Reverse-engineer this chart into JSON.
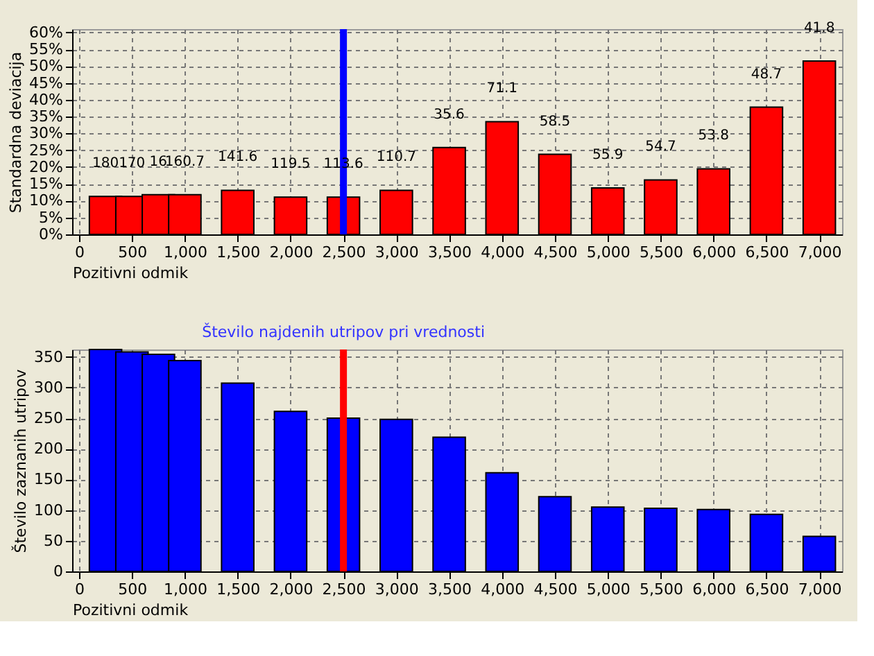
{
  "chart_data": [
    {
      "type": "bar",
      "ylabel": "Standardna deviacija",
      "xlabel": "Pozitivni odmik",
      "x": [
        250,
        500,
        750,
        1000,
        1500,
        2000,
        2500,
        3000,
        3500,
        4000,
        4500,
        5000,
        5500,
        6000,
        6500,
        7000
      ],
      "series": [
        {
          "color": "#ff0000",
          "values": [
            11.3,
            11.3,
            11.8,
            11.8,
            13.1,
            11.1,
            11.1,
            13.1,
            25.8,
            33.5,
            23.8,
            13.8,
            16.2,
            19.5,
            37.8,
            51.5
          ]
        }
      ],
      "annotations": [
        {
          "text": "180",
          "x": 250,
          "y": 11.3
        },
        {
          "text": "170",
          "x": 500,
          "y": 11.3
        },
        {
          "text": "16",
          "x": 750,
          "y": 11.8
        },
        {
          "text": "160.7",
          "x": 1000,
          "y": 11.8
        },
        {
          "text": "141.6",
          "x": 1500,
          "y": 13.1
        },
        {
          "text": "119.5",
          "x": 2000,
          "y": 11.1
        },
        {
          "text": "113.6",
          "x": 2500,
          "y": 11.1
        },
        {
          "text": "110.7",
          "x": 3000,
          "y": 13.1
        },
        {
          "text": "35.6",
          "x": 3500,
          "y": 25.8
        },
        {
          "text": "71.1",
          "x": 4000,
          "y": 33.5
        },
        {
          "text": "58.5",
          "x": 4500,
          "y": 23.8
        },
        {
          "text": "55.9",
          "x": 5000,
          "y": 13.8
        },
        {
          "text": "54.7",
          "x": 5500,
          "y": 16.2
        },
        {
          "text": "53.8",
          "x": 6000,
          "y": 19.5
        },
        {
          "text": "48.7",
          "x": 6500,
          "y": 37.8
        },
        {
          "text": "41.8",
          "x": 7000,
          "y": 51.5
        }
      ],
      "xlim": [
        0,
        7150
      ],
      "xticks": [
        {
          "value": 0,
          "label": "0"
        },
        {
          "value": 500,
          "label": "500"
        },
        {
          "value": 1000,
          "label": "1,000"
        },
        {
          "value": 1500,
          "label": "1,500"
        },
        {
          "value": 2000,
          "label": "2,000"
        },
        {
          "value": 2500,
          "label": "2,500"
        },
        {
          "value": 3000,
          "label": "3,000"
        },
        {
          "value": 3500,
          "label": "3,500"
        },
        {
          "value": 4000,
          "label": "4,000"
        },
        {
          "value": 4500,
          "label": "4,500"
        },
        {
          "value": 5000,
          "label": "5,000"
        },
        {
          "value": 5500,
          "label": "5,500"
        },
        {
          "value": 6000,
          "label": "6,000"
        },
        {
          "value": 6500,
          "label": "6,500"
        },
        {
          "value": 7000,
          "label": "7,000"
        }
      ],
      "ylim": [
        0,
        61
      ],
      "yticks": [
        {
          "value": 0,
          "label": "0%"
        },
        {
          "value": 5,
          "label": "5%"
        },
        {
          "value": 10,
          "label": "10%"
        },
        {
          "value": 15,
          "label": "15%"
        },
        {
          "value": 20,
          "label": "20%"
        },
        {
          "value": 25,
          "label": "25%"
        },
        {
          "value": 30,
          "label": "30%"
        },
        {
          "value": 35,
          "label": "35%"
        },
        {
          "value": 40,
          "label": "40%"
        },
        {
          "value": 45,
          "label": "45%"
        },
        {
          "value": 50,
          "label": "50%"
        },
        {
          "value": 55,
          "label": "55%"
        },
        {
          "value": 60,
          "label": "60%"
        }
      ],
      "ref_lines": [
        {
          "axis": "x",
          "value": 2500,
          "color": "#0000ff"
        }
      ],
      "grid": true
    },
    {
      "type": "bar",
      "ylabel": "Število zaznanih utripov",
      "xlabel": "Pozitivni odmik",
      "x": [
        250,
        500,
        750,
        1000,
        1500,
        2000,
        2500,
        3000,
        3500,
        4000,
        4500,
        5000,
        5500,
        6000,
        6500,
        7000
      ],
      "series": [
        {
          "color": "#0000ff",
          "values": [
            362,
            358,
            354,
            344,
            307,
            261,
            250,
            248,
            219,
            161,
            122,
            105,
            103,
            101,
            93,
            57
          ]
        }
      ],
      "xlim": [
        0,
        7150
      ],
      "xticks": [
        {
          "value": 0,
          "label": "0"
        },
        {
          "value": 500,
          "label": "500"
        },
        {
          "value": 1000,
          "label": "1,000"
        },
        {
          "value": 1500,
          "label": "1,500"
        },
        {
          "value": 2000,
          "label": "2,000"
        },
        {
          "value": 2500,
          "label": "2,500"
        },
        {
          "value": 3000,
          "label": "3,000"
        },
        {
          "value": 3500,
          "label": "3,500"
        },
        {
          "value": 4000,
          "label": "4,000"
        },
        {
          "value": 4500,
          "label": "4,500"
        },
        {
          "value": 5000,
          "label": "5,000"
        },
        {
          "value": 5500,
          "label": "5,500"
        },
        {
          "value": 6000,
          "label": "6,000"
        },
        {
          "value": 6500,
          "label": "6,500"
        },
        {
          "value": 7000,
          "label": "7,000"
        }
      ],
      "ylim": [
        0,
        362
      ],
      "yticks": [
        0,
        50,
        100,
        150,
        200,
        250,
        300,
        350
      ],
      "ref_lines": [
        {
          "axis": "x",
          "value": 2500,
          "color": "#ff0000",
          "label": "Število najdenih utripov pri vrednosti"
        }
      ],
      "grid": true
    }
  ]
}
